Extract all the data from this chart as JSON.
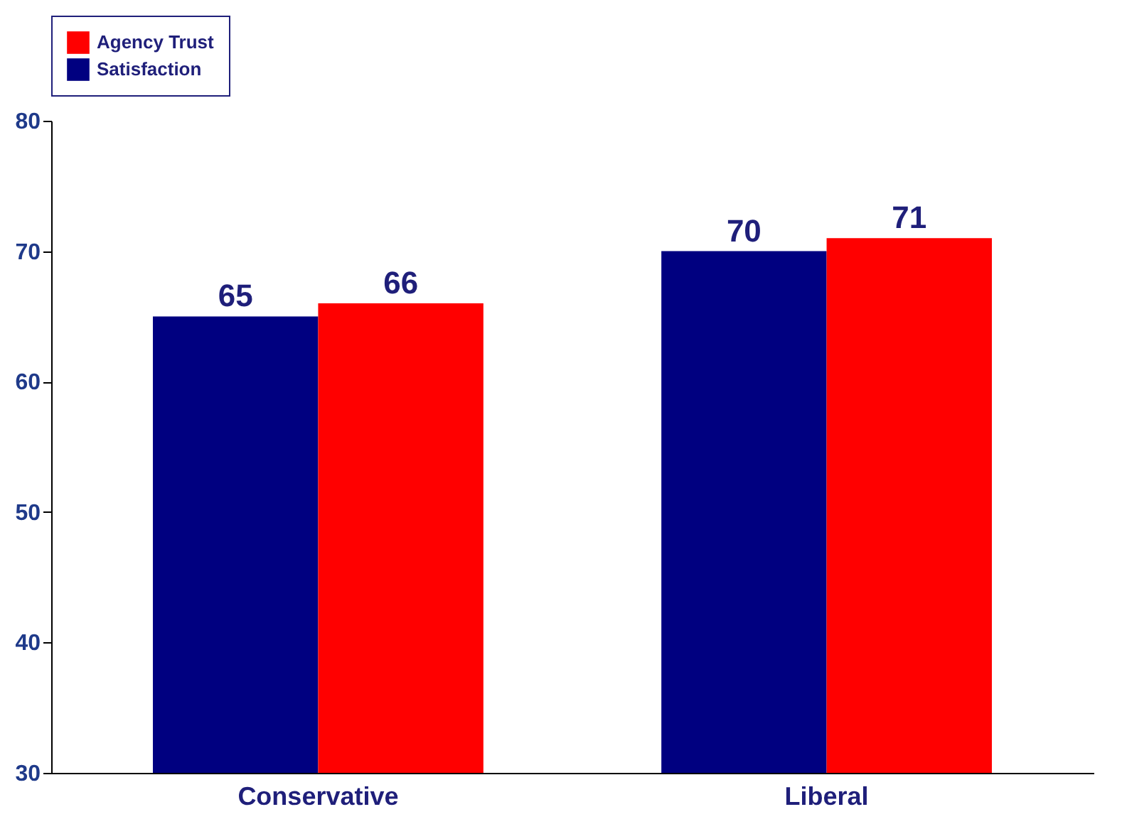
{
  "chart_data": {
    "type": "bar",
    "categories": [
      "Conservative",
      "Liberal"
    ],
    "series": [
      {
        "name": "Satisfaction",
        "color": "#000080",
        "values": [
          65,
          70
        ]
      },
      {
        "name": "Agency Trust",
        "color": "#ff0000",
        "values": [
          66,
          71
        ]
      }
    ],
    "ylim": [
      30,
      80
    ],
    "yticks": [
      30,
      40,
      50,
      60,
      70,
      80
    ],
    "data_labels": true,
    "legend": "top",
    "grid": false
  }
}
